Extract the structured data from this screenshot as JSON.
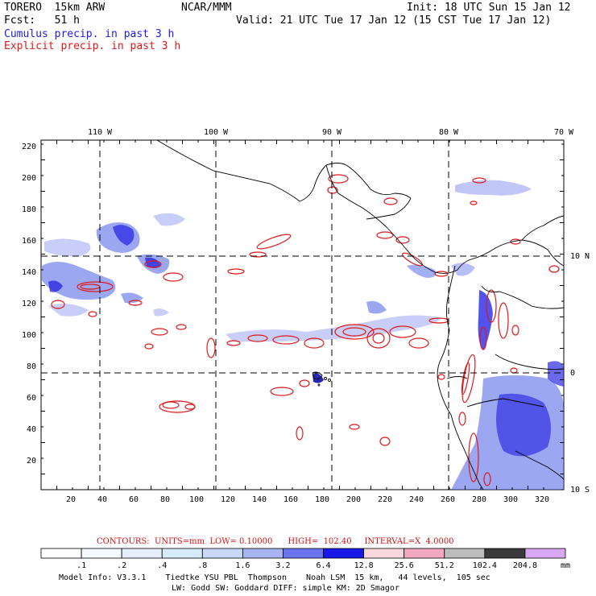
{
  "header": {
    "model": "TORERO  15km ARW",
    "org": "NCAR/MMM",
    "init": "Init: 18 UTC Sun 15 Jan 12",
    "fcst": "Fcst:   51 h",
    "valid": "Valid: 21 UTC Tue 17 Jan 12 (15 CST Tue 17 Jan 12)",
    "legend_cumulus": "Cumulus precip. in past 3 h",
    "legend_explicit": "Explicit precip. in past 3 h"
  },
  "axes": {
    "top_lon_labels": [
      "110 W",
      "100 W",
      "90 W",
      "80 W",
      "70 W"
    ],
    "right_lat_labels": [
      "10 N",
      "0",
      "10 S"
    ],
    "x_ticks": [
      "20",
      "40",
      "60",
      "80",
      "100",
      "120",
      "140",
      "160",
      "180",
      "200",
      "220",
      "240",
      "260",
      "280",
      "300",
      "320"
    ],
    "y_ticks": [
      "20",
      "40",
      "60",
      "80",
      "100",
      "120",
      "140",
      "160",
      "180",
      "200",
      "220"
    ]
  },
  "contour_info": "CONTOURS:  UNITS=mm  LOW= 0.10000      HIGH=  102.40     INTERVAL=X  4.0000",
  "colorbar": {
    "unit": "mm",
    "labels": [
      ".1",
      ".2",
      ".4",
      ".8",
      "1.6",
      "3.2",
      "6.4",
      "12.8",
      "25.6",
      "51.2",
      "102.4",
      "204.8"
    ],
    "colors": [
      "#ffffff",
      "#f4f8ff",
      "#e6eefc",
      "#d6eaf8",
      "#c8d8f6",
      "#a8b4f2",
      "#6a74ee",
      "#1818e6",
      "#f8d8dc",
      "#f2a8c0",
      "#bcbcbc",
      "#3a3a3a",
      "#d8a8f2"
    ]
  },
  "footer": {
    "line1": "Model Info: V3.3.1    Tiedtke YSU PBL  Thompson    Noah LSM  15 km,   44 levels,  105 sec",
    "line2": "LW: Godd SW: Goddard DIFF: simple KM: 2D Smagor"
  },
  "colors": {
    "cumulus": "#2a2ae0",
    "explicit": "#e01818",
    "coast": "#000000"
  }
}
